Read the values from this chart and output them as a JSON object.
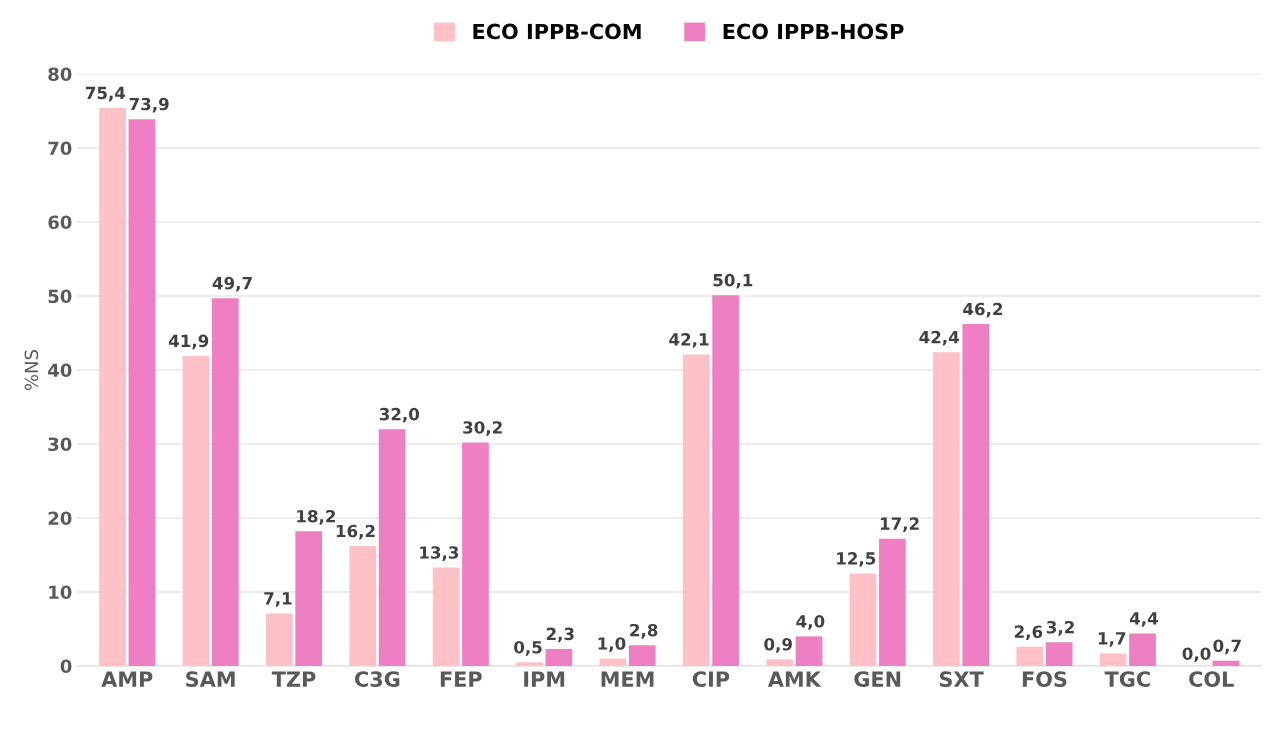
{
  "chart_data": {
    "type": "bar",
    "ylabel": "%NS",
    "categories": [
      "AMP",
      "SAM",
      "TZP",
      "C3G",
      "FEP",
      "IPM",
      "MEM",
      "CIP",
      "AMK",
      "GEN",
      "SXT",
      "FOS",
      "TGC",
      "COL"
    ],
    "series": [
      {
        "name": "ECO IPPB-COM",
        "color": "#ffc0c6",
        "values": [
          75.4,
          41.9,
          7.1,
          16.2,
          13.3,
          0.5,
          1.0,
          42.1,
          0.9,
          12.5,
          42.4,
          2.6,
          1.7,
          0.0
        ],
        "value_labels": [
          "75,4",
          "41,9",
          "7,1",
          "16,2",
          "13,3",
          "0,5",
          "1,0",
          "42,1",
          "0,9",
          "12,5",
          "42,4",
          "2,6",
          "1,7",
          "0,0"
        ]
      },
      {
        "name": "ECO IPPB-HOSP",
        "color": "#ee7fc2",
        "values": [
          73.9,
          49.7,
          18.2,
          32.0,
          30.2,
          2.3,
          2.8,
          50.1,
          4.0,
          17.2,
          46.2,
          3.2,
          4.4,
          0.7
        ],
        "value_labels": [
          "73,9",
          "49,7",
          "18,2",
          "32,0",
          "30,2",
          "2,3",
          "2,8",
          "50,1",
          "4,0",
          "17,2",
          "46,2",
          "3,2",
          "4,4",
          "0,7"
        ]
      }
    ],
    "ylim": [
      0,
      80
    ],
    "yticks": [
      0,
      10,
      20,
      30,
      40,
      50,
      60,
      70,
      80
    ],
    "grid": "y",
    "legend": "top"
  }
}
